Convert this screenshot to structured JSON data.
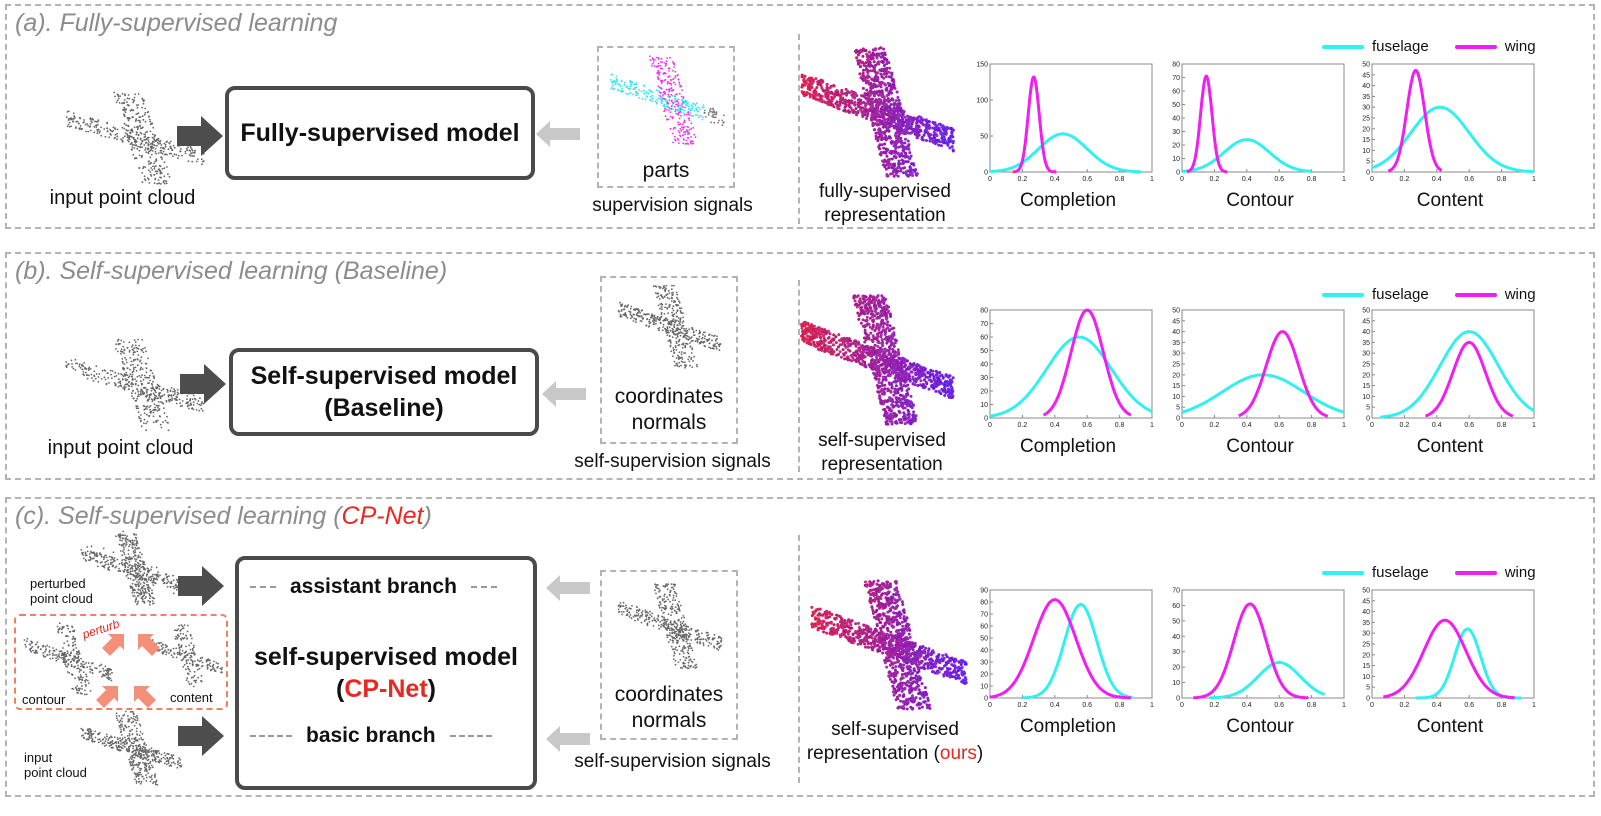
{
  "colors": {
    "fuselage": "#33f0f0",
    "wing": "#f01ef0",
    "red": "#e8281e",
    "arrow": "#4d4d4d",
    "arrow_light": "#c8c8c8",
    "perturb": "#f4907a"
  },
  "legend": {
    "fuselage": "fuselage",
    "wing": "wing"
  },
  "panel_a": {
    "title": "(a). Fully-supervised learning",
    "input_caption": "input point cloud",
    "model_label": "Fully-supervised model",
    "signal_label": "parts",
    "signal_caption": "supervision signals",
    "rep_caption": [
      "fully-supervised",
      "representation"
    ]
  },
  "panel_b": {
    "title": "(b). Self-supervised learning (Baseline)",
    "input_caption": "input point cloud",
    "model_label": [
      "Self-supervised model",
      "(Baseline)"
    ],
    "signal_label": [
      "coordinates",
      "normals"
    ],
    "signal_caption": "self-supervision signals",
    "rep_caption": [
      "self-supervised",
      "representation"
    ]
  },
  "panel_c": {
    "title_prefix": "(c). Self-supervised learning (",
    "title_highlight": "CP-Net",
    "title_suffix": ")",
    "perturbed_caption": [
      "perturbed",
      "point cloud"
    ],
    "perturb_label": "perturb",
    "contour_caption": "contour",
    "content_caption": "content",
    "input_caption": [
      "input",
      "point cloud"
    ],
    "assistant_branch": "assistant branch",
    "model_label_line1": "self-supervised model",
    "model_label_line2_prefix": "(",
    "model_label_line2_highlight": "CP-Net",
    "model_label_line2_suffix": ")",
    "basic_branch": "basic branch",
    "signal_label": [
      "coordinates",
      "normals"
    ],
    "signal_caption": "self-supervision signals",
    "rep_caption_line1": "self-supervised",
    "rep_caption_line2_prefix": "representation (",
    "rep_caption_line2_highlight": "ours",
    "rep_caption_line2_suffix": ")"
  },
  "chart_data": [
    {
      "id": "a-completion",
      "type": "line",
      "title": "Completion",
      "xlim": [
        0,
        1
      ],
      "ylim": [
        0,
        150
      ],
      "xticks": [
        "0",
        "0.2",
        "0.4",
        "0.6",
        "0.8",
        "1"
      ],
      "yticks": [
        "0",
        "50",
        "100",
        "150"
      ],
      "series": [
        {
          "name": "fuselage",
          "mu": 0.45,
          "peak": 53,
          "sigma": 0.15,
          "range": [
            0.0,
            0.93
          ]
        },
        {
          "name": "wing",
          "mu": 0.27,
          "peak": 132,
          "sigma": 0.034,
          "range": [
            0.14,
            0.41
          ]
        }
      ]
    },
    {
      "id": "a-contour",
      "type": "line",
      "title": "Contour",
      "xlim": [
        0,
        1
      ],
      "ylim": [
        0,
        80
      ],
      "xticks": [
        "0",
        "0.2",
        "0.4",
        "0.6",
        "0.8",
        "1"
      ],
      "yticks": [
        "0",
        "10",
        "20",
        "30",
        "40",
        "50",
        "60",
        "70",
        "80"
      ],
      "series": [
        {
          "name": "fuselage",
          "mu": 0.4,
          "peak": 24,
          "sigma": 0.14,
          "range": [
            0.0,
            0.8
          ]
        },
        {
          "name": "wing",
          "mu": 0.15,
          "peak": 71,
          "sigma": 0.035,
          "range": [
            0.03,
            0.28
          ]
        }
      ]
    },
    {
      "id": "a-content",
      "type": "line",
      "title": "Content",
      "xlim": [
        0,
        1
      ],
      "ylim": [
        0,
        50
      ],
      "xticks": [
        "0",
        "0.2",
        "0.4",
        "0.6",
        "0.8",
        "1"
      ],
      "yticks": [
        "0",
        "5",
        "10",
        "15",
        "20",
        "25",
        "30",
        "35",
        "40",
        "45",
        "50"
      ],
      "series": [
        {
          "name": "fuselage",
          "mu": 0.42,
          "peak": 30,
          "sigma": 0.18,
          "range": [
            0.0,
            1.0
          ]
        },
        {
          "name": "wing",
          "mu": 0.27,
          "peak": 47,
          "sigma": 0.055,
          "range": [
            0.1,
            0.43
          ]
        }
      ]
    },
    {
      "id": "b-completion",
      "type": "line",
      "title": "Completion",
      "xlim": [
        0,
        1
      ],
      "ylim": [
        0,
        80
      ],
      "xticks": [
        "0",
        "0.2",
        "0.4",
        "0.6",
        "0.8",
        "1"
      ],
      "yticks": [
        "0",
        "10",
        "20",
        "30",
        "40",
        "50",
        "60",
        "70",
        "80"
      ],
      "series": [
        {
          "name": "fuselage",
          "mu": 0.55,
          "peak": 60,
          "sigma": 0.2,
          "range": [
            0.0,
            1.0
          ]
        },
        {
          "name": "wing",
          "mu": 0.6,
          "peak": 80,
          "sigma": 0.1,
          "range": [
            0.33,
            0.87
          ]
        }
      ]
    },
    {
      "id": "b-contour",
      "type": "line",
      "title": "Contour",
      "xlim": [
        0,
        1
      ],
      "ylim": [
        0,
        50
      ],
      "xticks": [
        "0",
        "0.2",
        "0.4",
        "0.6",
        "0.8",
        "1"
      ],
      "yticks": [
        "0",
        "5",
        "10",
        "15",
        "20",
        "25",
        "30",
        "35",
        "40",
        "45",
        "50"
      ],
      "series": [
        {
          "name": "fuselage",
          "mu": 0.5,
          "peak": 20,
          "sigma": 0.25,
          "range": [
            0.0,
            1.0
          ]
        },
        {
          "name": "wing",
          "mu": 0.62,
          "peak": 40,
          "sigma": 0.1,
          "range": [
            0.35,
            0.9
          ]
        }
      ]
    },
    {
      "id": "b-content",
      "type": "line",
      "title": "Content",
      "xlim": [
        0,
        1
      ],
      "ylim": [
        0,
        50
      ],
      "xticks": [
        "0",
        "0.2",
        "0.4",
        "0.6",
        "0.8",
        "1"
      ],
      "yticks": [
        "0",
        "5",
        "10",
        "15",
        "20",
        "25",
        "30",
        "35",
        "40",
        "45",
        "50"
      ],
      "series": [
        {
          "name": "fuselage",
          "mu": 0.6,
          "peak": 40,
          "sigma": 0.18,
          "range": [
            0.05,
            1.0
          ]
        },
        {
          "name": "wing",
          "mu": 0.6,
          "peak": 35,
          "sigma": 0.1,
          "range": [
            0.33,
            0.87
          ]
        }
      ]
    },
    {
      "id": "c-completion",
      "type": "line",
      "title": "Completion",
      "xlim": [
        0,
        1
      ],
      "ylim": [
        0,
        90
      ],
      "xticks": [
        "0",
        "0.2",
        "0.4",
        "0.6",
        "0.8",
        "1"
      ],
      "yticks": [
        "0",
        "10",
        "20",
        "30",
        "40",
        "50",
        "60",
        "70",
        "80",
        "90"
      ],
      "series": [
        {
          "name": "fuselage",
          "mu": 0.56,
          "peak": 78,
          "sigma": 0.1,
          "range": [
            0.2,
            0.88
          ]
        },
        {
          "name": "wing",
          "mu": 0.4,
          "peak": 82,
          "sigma": 0.13,
          "range": [
            0.0,
            0.87
          ]
        }
      ]
    },
    {
      "id": "c-contour",
      "type": "line",
      "title": "Contour",
      "xlim": [
        0,
        1
      ],
      "ylim": [
        0,
        70
      ],
      "xticks": [
        "0",
        "0.2",
        "0.4",
        "0.6",
        "0.8",
        "1"
      ],
      "yticks": [
        "0",
        "10",
        "20",
        "30",
        "40",
        "50",
        "60",
        "70"
      ],
      "series": [
        {
          "name": "fuselage",
          "mu": 0.6,
          "peak": 23,
          "sigma": 0.13,
          "range": [
            0.17,
            0.88
          ]
        },
        {
          "name": "wing",
          "mu": 0.42,
          "peak": 61,
          "sigma": 0.1,
          "range": [
            0.07,
            0.78
          ]
        }
      ]
    },
    {
      "id": "c-content",
      "type": "line",
      "title": "Content",
      "xlim": [
        0,
        1
      ],
      "ylim": [
        0,
        50
      ],
      "xticks": [
        "0",
        "0.2",
        "0.4",
        "0.6",
        "0.8",
        "1"
      ],
      "yticks": [
        "0",
        "5",
        "10",
        "15",
        "20",
        "25",
        "30",
        "35",
        "40",
        "45",
        "50"
      ],
      "series": [
        {
          "name": "fuselage",
          "mu": 0.59,
          "peak": 32,
          "sigma": 0.08,
          "range": [
            0.27,
            0.92
          ]
        },
        {
          "name": "wing",
          "mu": 0.45,
          "peak": 36,
          "sigma": 0.13,
          "range": [
            0.07,
            0.88
          ]
        }
      ]
    }
  ]
}
